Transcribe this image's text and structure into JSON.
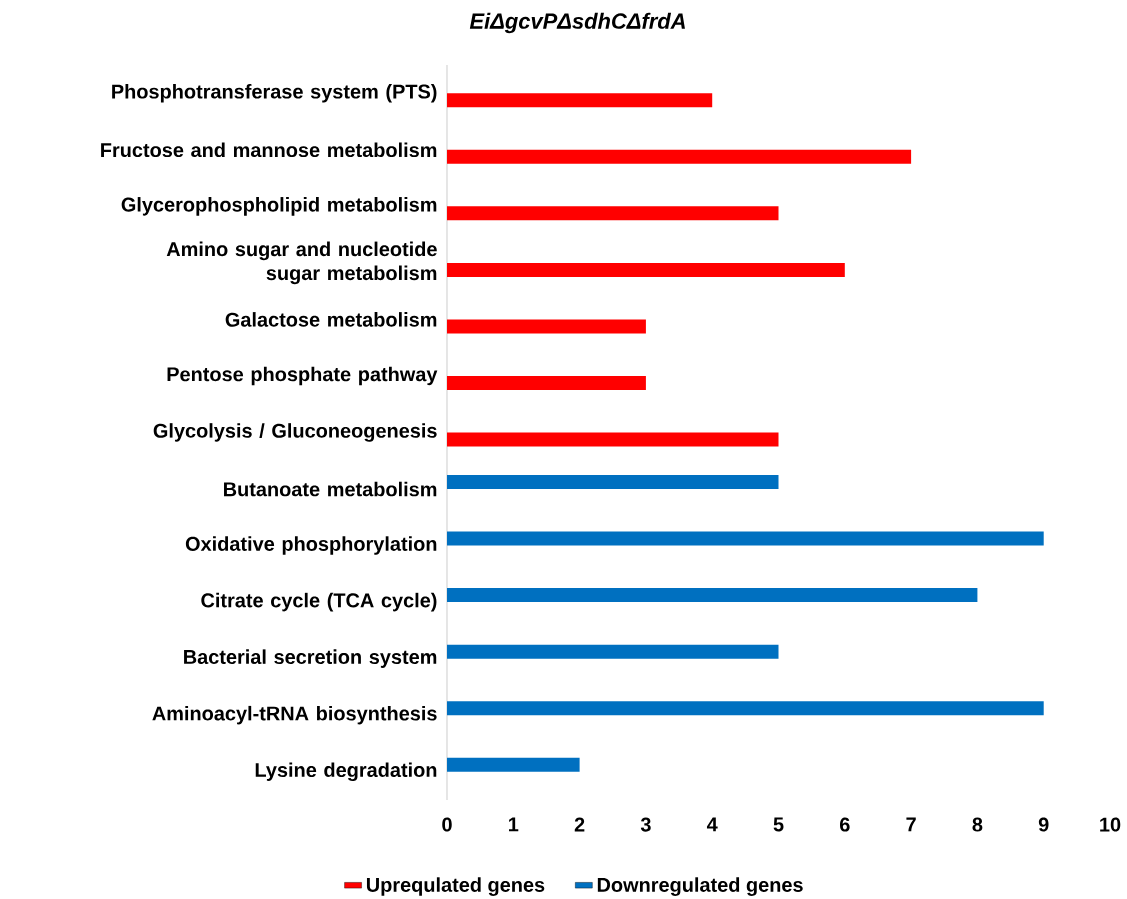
{
  "chart_data": {
    "type": "bar",
    "orientation": "horizontal",
    "title": "EiΔgcvPΔsdhCΔfrdA",
    "categories": [
      "Phosphotransferase system (PTS)",
      "Fructose and mannose metabolism",
      "Glycerophospholipid metabolism",
      "Amino sugar and nucleotide sugar metabolism",
      "Galactose metabolism",
      "Pentose phosphate pathway",
      "Glycolysis / Gluconeogenesis",
      "Butanoate metabolism",
      "Oxidative phosphorylation",
      "Citrate cycle (TCA cycle)",
      "Bacterial secretion system",
      "Aminoacyl-tRNA biosynthesis",
      "Lysine degradation"
    ],
    "series": [
      {
        "name": "Uprequlated  genes",
        "color": "#ff0000",
        "values": [
          4,
          7,
          5,
          6,
          3,
          3,
          5,
          null,
          null,
          null,
          null,
          null,
          null
        ]
      },
      {
        "name": "Downregulated genes",
        "color": "#0070c0",
        "values": [
          null,
          null,
          null,
          null,
          null,
          null,
          null,
          5,
          9,
          8,
          5,
          9,
          2
        ]
      }
    ],
    "xlim": [
      0,
      10
    ],
    "xticks": [
      0,
      1,
      2,
      3,
      4,
      5,
      6,
      7,
      8,
      9,
      10
    ],
    "legend": "bottom"
  }
}
